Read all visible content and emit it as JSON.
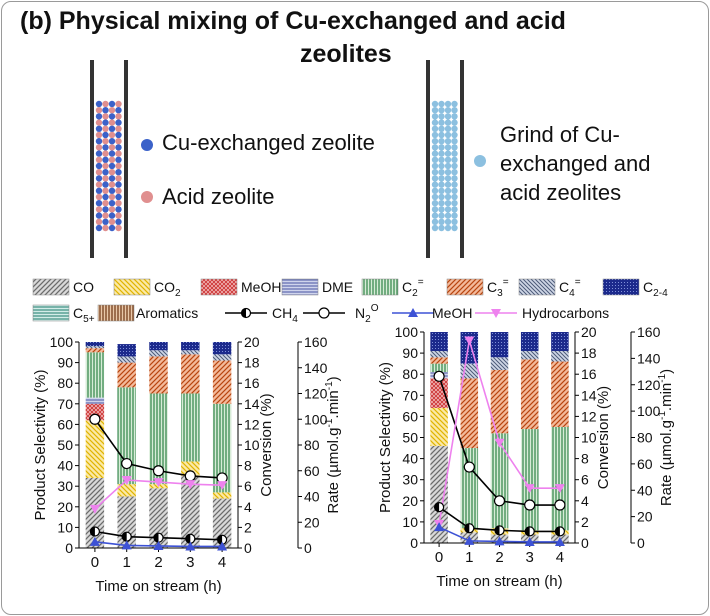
{
  "panel": {
    "title_line1": "(b) Physical mixing of Cu-exchanged and acid",
    "title_line2": "zeolites"
  },
  "schematic": {
    "left_legend": [
      "Cu-exchanged zeolite",
      "Acid zeolite"
    ],
    "right_label": [
      "Grind of Cu-",
      "exchanged and",
      "acid zeolites"
    ],
    "colors": {
      "cu_zeolite": "#3b62c9",
      "acid_zeolite": "#e08f8f",
      "ground_mix": "#8cc0e0"
    }
  },
  "legend": {
    "row1": [
      {
        "key": "CO",
        "label": "CO",
        "sub": "",
        "sup": ""
      },
      {
        "key": "CO2",
        "label": "CO",
        "sub": "2",
        "sup": ""
      },
      {
        "key": "MeOH",
        "label": "MeOH",
        "sub": "",
        "sup": ""
      },
      {
        "key": "DME",
        "label": "DME",
        "sub": "",
        "sup": ""
      },
      {
        "key": "C2",
        "label": "C",
        "sub": "2",
        "sup": "="
      },
      {
        "key": "C3",
        "label": "C",
        "sub": "3",
        "sup": "="
      },
      {
        "key": "C4",
        "label": "C",
        "sub": "4",
        "sup": "="
      },
      {
        "key": "C24",
        "label": "C",
        "sub": "2-4",
        "sup": ""
      }
    ],
    "row2": [
      {
        "key": "C5",
        "label": "C",
        "sub": "5+",
        "sup": "",
        "type": "bar"
      },
      {
        "key": "Arom",
        "label": "Aromatics",
        "sub": "",
        "sup": "",
        "type": "bar"
      },
      {
        "key": "CH4",
        "label": "CH",
        "sub": "4",
        "sup": "",
        "type": "line"
      },
      {
        "key": "N2O",
        "label": "N",
        "sub": "2",
        "sup": "O",
        "type": "line"
      },
      {
        "key": "MeOHr",
        "label": "MeOH",
        "sub": "",
        "sup": "",
        "type": "line"
      },
      {
        "key": "HC",
        "label": "Hydrocarbons",
        "sub": "",
        "sup": "",
        "type": "line"
      }
    ]
  },
  "chart_data": [
    {
      "type": "bar",
      "stacked": true,
      "categories": [
        "0",
        "1",
        "2",
        "3",
        "4"
      ],
      "xlabel": "Time on stream (h)",
      "ylabel": "Product Selectivity (%)",
      "y2label": "Conversion (%)",
      "y3label_parts": [
        "Rate (µmol.g",
        "-1",
        ".min",
        "-1",
        ")"
      ],
      "ylim": [
        0,
        100
      ],
      "y2lim": [
        0,
        20
      ],
      "y3lim": [
        0,
        160
      ],
      "yticks": [
        0,
        10,
        20,
        30,
        40,
        50,
        60,
        70,
        80,
        90,
        100
      ],
      "y2ticks": [
        0,
        2,
        4,
        6,
        8,
        10,
        12,
        14,
        16,
        18,
        20
      ],
      "y3ticks": [
        0,
        20,
        40,
        60,
        80,
        100,
        120,
        140,
        160
      ],
      "series": [
        {
          "key": "CO",
          "values": [
            34,
            25,
            29,
            35,
            24
          ]
        },
        {
          "key": "CO2",
          "values": [
            28,
            6,
            2,
            7,
            3
          ]
        },
        {
          "key": "MeOH",
          "values": [
            8,
            0,
            0,
            0,
            0
          ]
        },
        {
          "key": "DME",
          "values": [
            3,
            0,
            0,
            0,
            0
          ]
        },
        {
          "key": "C2",
          "values": [
            22,
            47,
            44,
            33,
            43
          ]
        },
        {
          "key": "C3",
          "values": [
            2,
            12,
            18,
            19,
            21
          ]
        },
        {
          "key": "C4",
          "values": [
            1,
            3,
            3,
            2,
            3
          ]
        },
        {
          "key": "C24",
          "values": [
            2,
            6,
            4,
            4,
            6
          ]
        }
      ],
      "lines": [
        {
          "key": "N2O",
          "axis": "y2",
          "values": [
            12.5,
            8.2,
            7.5,
            7,
            6.8
          ]
        },
        {
          "key": "HC",
          "axis": "y2",
          "values": [
            3.8,
            6.6,
            6.4,
            6.2,
            6.1
          ]
        },
        {
          "key": "CH4",
          "axis": "y2",
          "values": [
            1.6,
            1.1,
            1,
            0.9,
            0.8
          ]
        },
        {
          "key": "MeOHr",
          "axis": "y2",
          "values": [
            0.6,
            0.25,
            0.2,
            0.15,
            0.15
          ]
        }
      ]
    },
    {
      "type": "bar",
      "stacked": true,
      "categories": [
        "0",
        "1",
        "2",
        "3",
        "4"
      ],
      "xlabel": "Time on stream (h)",
      "ylabel": "Product Selectivity (%)",
      "y2label": "Conversion (%)",
      "y3label_parts": [
        "Rate (µmol.g",
        "-1",
        ".min",
        "-1",
        ")"
      ],
      "ylim": [
        0,
        100
      ],
      "y2lim": [
        0,
        20
      ],
      "y3lim": [
        0,
        160
      ],
      "yticks": [
        0,
        10,
        20,
        30,
        40,
        50,
        60,
        70,
        80,
        90,
        100
      ],
      "y2ticks": [
        0,
        2,
        4,
        6,
        8,
        10,
        12,
        14,
        16,
        18,
        20
      ],
      "y3ticks": [
        0,
        20,
        40,
        60,
        80,
        100,
        120,
        140,
        160
      ],
      "series": [
        {
          "key": "CO",
          "values": [
            46,
            5,
            4,
            4,
            4
          ]
        },
        {
          "key": "CO2",
          "values": [
            18,
            2,
            3,
            2,
            2
          ]
        },
        {
          "key": "MeOH",
          "values": [
            14,
            0,
            0,
            0,
            0
          ]
        },
        {
          "key": "DME",
          "values": [
            3,
            0,
            0,
            0,
            0
          ]
        },
        {
          "key": "C2",
          "values": [
            4,
            38,
            45,
            48,
            49
          ]
        },
        {
          "key": "C3",
          "values": [
            3,
            33,
            30,
            33,
            31
          ]
        },
        {
          "key": "C4",
          "values": [
            3,
            7,
            6,
            4,
            5
          ]
        },
        {
          "key": "C24",
          "values": [
            9,
            15,
            12,
            9,
            9
          ]
        }
      ],
      "lines": [
        {
          "key": "N2O",
          "axis": "y2",
          "values": [
            15.8,
            7.2,
            4,
            3.6,
            3.6
          ]
        },
        {
          "key": "HC",
          "axis": "y2",
          "values": [
            1.8,
            19.2,
            9.5,
            5.2,
            5.2
          ]
        },
        {
          "key": "CH4",
          "axis": "y2",
          "values": [
            3.4,
            1.4,
            1.2,
            1.1,
            1.1
          ]
        },
        {
          "key": "MeOHr",
          "axis": "y2",
          "values": [
            1.5,
            0.2,
            0.15,
            0.1,
            0.1
          ]
        }
      ]
    }
  ]
}
